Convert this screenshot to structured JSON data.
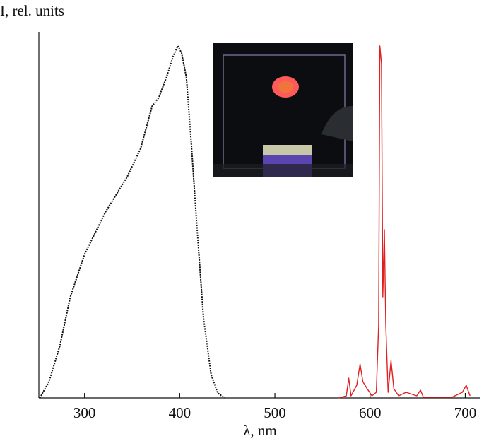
{
  "chart_data": {
    "type": "line",
    "x_label": "λ, nm",
    "y_label": "I, rel. units",
    "xlim": [
      252,
      716
    ],
    "xticks": [
      300,
      400,
      500,
      600,
      700
    ],
    "ylim": [
      0,
      1.04
    ],
    "series": [
      {
        "color": "#111111",
        "style": "dotted",
        "x": [
          253,
          262.6,
          274,
          285,
          300,
          322,
          345,
          359,
          371,
          378,
          386,
          393,
          398,
          402,
          407,
          412,
          418,
          425,
          433,
          440,
          447
        ],
        "values": [
          0,
          0.046,
          0.147,
          0.287,
          0.408,
          0.528,
          0.629,
          0.709,
          0.829,
          0.853,
          0.91,
          0.97,
          1.0,
          0.98,
          0.91,
          0.73,
          0.49,
          0.227,
          0.066,
          0.014,
          0
        ]
      },
      {
        "color": "#e02020",
        "style": "solid",
        "x": [
          567,
          575,
          577.6,
          580,
          586,
          589.5,
          592.5,
          597,
          602,
          606.6,
          609,
          610.3,
          612,
          613.4,
          615,
          616.5,
          619,
          622,
          625,
          630,
          637.8,
          649,
          653,
          656,
          686,
          697,
          701,
          705
        ],
        "values": [
          0,
          0.006,
          0.056,
          0.006,
          0.036,
          0.096,
          0.046,
          0.026,
          0.006,
          0.016,
          0.207,
          1.0,
          0.95,
          0.287,
          0.478,
          0.207,
          0.016,
          0.106,
          0.026,
          0.006,
          0.016,
          0.006,
          0.022,
          0.002,
          0.002,
          0.016,
          0.036,
          0.006
        ]
      }
    ]
  }
}
